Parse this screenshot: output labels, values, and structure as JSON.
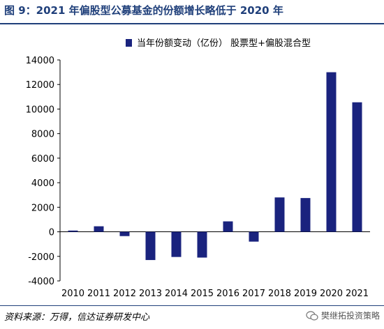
{
  "figure": {
    "title": "图 9：2021 年偏股型公募基金的份额增长略低于 2020 年",
    "source": "资料来源：万得，信达证券研发中心",
    "watermark": "樊继拓投资策略"
  },
  "colors": {
    "accent": "#1f3f7a",
    "bar": "#1a237e"
  },
  "chart_data": {
    "type": "bar",
    "categories": [
      "2010",
      "2011",
      "2012",
      "2013",
      "2014",
      "2015",
      "2016",
      "2017",
      "2018",
      "2019",
      "2020",
      "2021"
    ],
    "series": [
      {
        "name": "当年份额变动（亿份） 股票型+偏股混合型",
        "values": [
          100,
          450,
          -350,
          -2300,
          -2050,
          -2100,
          850,
          -800,
          2800,
          2750,
          13000,
          10550
        ]
      }
    ],
    "ylim": [
      -4000,
      14000
    ],
    "yticks": [
      -4000,
      -2000,
      0,
      2000,
      4000,
      6000,
      8000,
      10000,
      12000,
      14000
    ],
    "ytick_labels": [
      "-4000",
      "-2000",
      "0",
      "2000",
      "4000",
      "6000",
      "8000",
      "10000",
      "12000",
      "14000"
    ],
    "legend_position": "top-right",
    "grid": false,
    "title": "",
    "xlabel": "",
    "ylabel": ""
  }
}
